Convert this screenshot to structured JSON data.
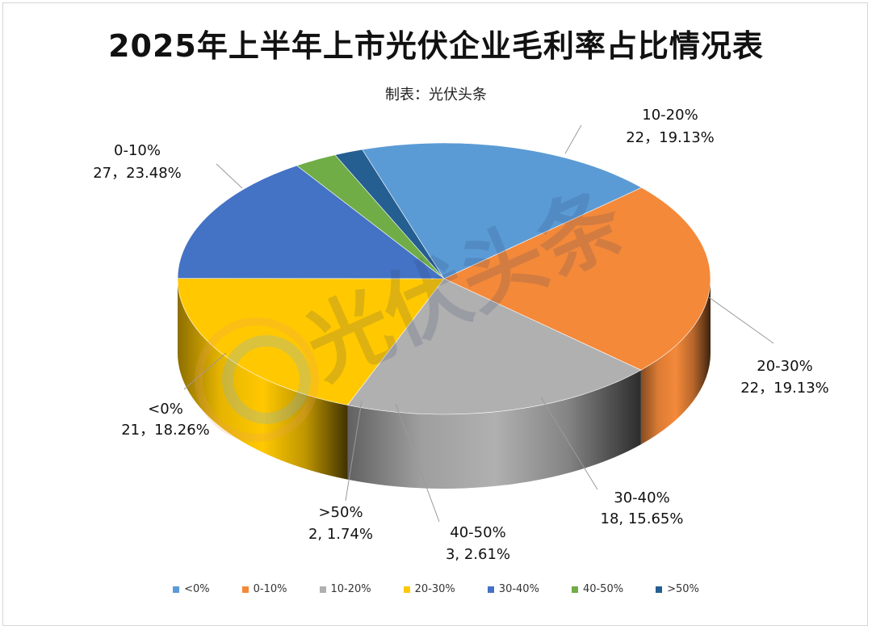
{
  "title": "2025年上半年上市光伏企业毛利率占比情况表",
  "subtitle": "制表：光伏头条",
  "watermark": "光伏头条",
  "chart_data": {
    "type": "pie",
    "title": "2025年上半年上市光伏企业毛利率占比情况表",
    "subtitle": "制表：光伏头条",
    "legend_position": "bottom",
    "categories": [
      "<0%",
      "0-10%",
      "10-20%",
      "20-30%",
      "30-40%",
      "40-50%",
      ">50%"
    ],
    "values": [
      21,
      27,
      22,
      22,
      18,
      3,
      2
    ],
    "percentages": [
      "18.26%",
      "23.48%",
      "19.13%",
      "19.13%",
      "15.65%",
      "2.61%",
      "1.74%"
    ],
    "colors": [
      "#5b9bd5",
      "#f4893a",
      "#b0b0b0",
      "#ffc800",
      "#4472c4",
      "#70ad47",
      "#255e91"
    ],
    "data_labels": [
      {
        "category": "<0%",
        "value_text": "21，18.26%"
      },
      {
        "category": "0-10%",
        "value_text": "27，23.48%"
      },
      {
        "category": "10-20%",
        "value_text": "22，19.13%"
      },
      {
        "category": "20-30%",
        "value_text": "22，19.13%"
      },
      {
        "category": "30-40%",
        "value_text": "18, 15.65%"
      },
      {
        "category": "40-50%",
        "value_text": "3, 2.61%"
      },
      {
        "category": ">50%",
        "value_text": "2, 1.74%"
      }
    ]
  }
}
